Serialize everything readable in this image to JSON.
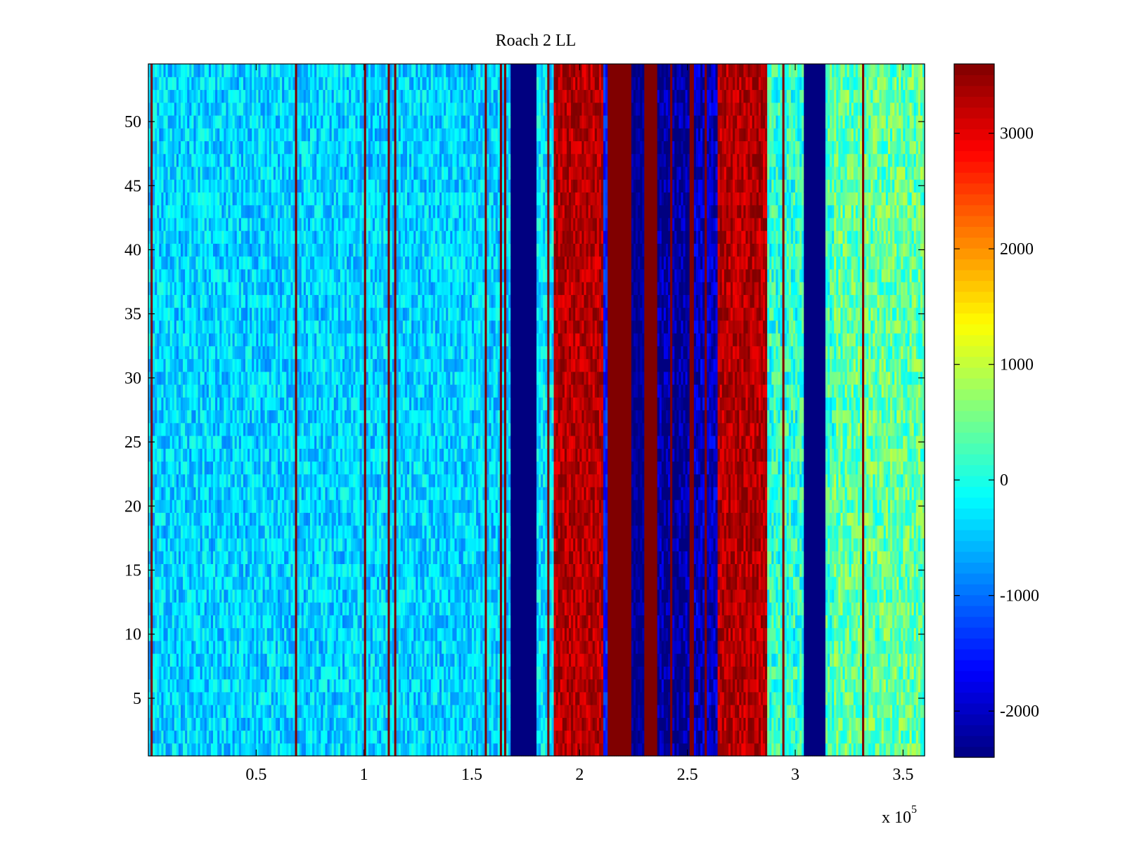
{
  "chart_data": {
    "type": "heatmap",
    "title": "Roach 2 LL",
    "xlabel": "",
    "ylabel": "",
    "x_range": [
      0,
      360000
    ],
    "y_range": [
      0.5,
      54.5
    ],
    "x_ticks": [
      50000,
      100000,
      150000,
      200000,
      250000,
      300000,
      350000
    ],
    "x_tick_labels": [
      "0.5",
      "1",
      "1.5",
      "2",
      "2.5",
      "3",
      "3.5"
    ],
    "x_exponent_label": "x 10",
    "x_exponent_power": "5",
    "y_ticks": [
      5,
      10,
      15,
      20,
      25,
      30,
      35,
      40,
      45,
      50
    ],
    "y_tick_labels": [
      "5",
      "10",
      "15",
      "20",
      "25",
      "30",
      "35",
      "40",
      "45",
      "50"
    ],
    "colormap": "jet",
    "color_range": [
      -2400,
      3600
    ],
    "colorbar_ticks": [
      -2000,
      -1000,
      0,
      1000,
      2000,
      3000
    ],
    "colorbar_tick_labels": [
      "-2000",
      "-1000",
      "0",
      "1000",
      "2000",
      "3000"
    ],
    "rows": 54,
    "column_bands": [
      {
        "x_start": 0,
        "x_end": 168000,
        "level": -400,
        "noise": 500
      },
      {
        "x_start": 168000,
        "x_end": 180000,
        "level": -2400,
        "noise": 0
      },
      {
        "x_start": 180000,
        "x_end": 188000,
        "level": -300,
        "noise": 500
      },
      {
        "x_start": 188000,
        "x_end": 211000,
        "level": 3300,
        "noise": 400
      },
      {
        "x_start": 211000,
        "x_end": 213000,
        "level": -1500,
        "noise": 400
      },
      {
        "x_start": 213000,
        "x_end": 224000,
        "level": 3600,
        "noise": 0
      },
      {
        "x_start": 224000,
        "x_end": 230000,
        "level": -2300,
        "noise": 300
      },
      {
        "x_start": 230000,
        "x_end": 236000,
        "level": 3600,
        "noise": 0
      },
      {
        "x_start": 236000,
        "x_end": 251000,
        "level": -2300,
        "noise": 600
      },
      {
        "x_start": 251000,
        "x_end": 253000,
        "level": 3600,
        "noise": 0
      },
      {
        "x_start": 253000,
        "x_end": 264000,
        "level": -2000,
        "noise": 500
      },
      {
        "x_start": 264000,
        "x_end": 287000,
        "level": 3300,
        "noise": 400
      },
      {
        "x_start": 287000,
        "x_end": 304000,
        "level": 100,
        "noise": 600
      },
      {
        "x_start": 304000,
        "x_end": 314000,
        "level": -2400,
        "noise": 0
      },
      {
        "x_start": 314000,
        "x_end": 318000,
        "level": 200,
        "noise": 600
      },
      {
        "x_start": 318000,
        "x_end": 360000,
        "level": 400,
        "noise": 600
      }
    ]
  }
}
